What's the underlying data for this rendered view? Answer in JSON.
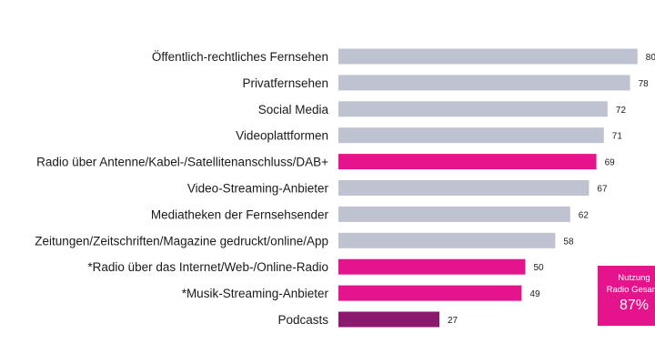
{
  "chart_data": {
    "type": "bar",
    "orientation": "horizontal",
    "categories": [
      "Öffentlich-rechtliches Fernsehen",
      "Privatfernsehen",
      "Social Media",
      "Videoplattformen",
      "Radio über Antenne/Kabel-/Satellitenanschluss/DAB+",
      "Video-Streaming-Anbieter",
      "Mediatheken der Fernsehsender",
      "Zeitungen/Zeitschriften/Magazine gedruckt/online/App",
      "*Radio über das Internet/Web-/Online-Radio",
      "*Musik-Streaming-Anbieter",
      "Podcasts"
    ],
    "values": [
      80,
      78,
      72,
      71,
      69,
      67,
      62,
      58,
      50,
      49,
      27
    ],
    "value_labels": [
      "80",
      "78",
      "72",
      "71",
      "69",
      "67",
      "62",
      "58",
      "50",
      "49",
      "27"
    ],
    "bar_colors": [
      "#bfc3d1",
      "#bfc3d1",
      "#bfc3d1",
      "#bfc3d1",
      "#e6148c",
      "#bfc3d1",
      "#bfc3d1",
      "#bfc3d1",
      "#e6148c",
      "#e6148c",
      "#8b1a6e"
    ],
    "xlim": [
      0,
      100
    ],
    "grid": false,
    "legend": "none"
  },
  "callout": {
    "line1": "Nutzung",
    "line2": "Radio Gesamt",
    "value": "87%",
    "color": "#e6148c"
  }
}
